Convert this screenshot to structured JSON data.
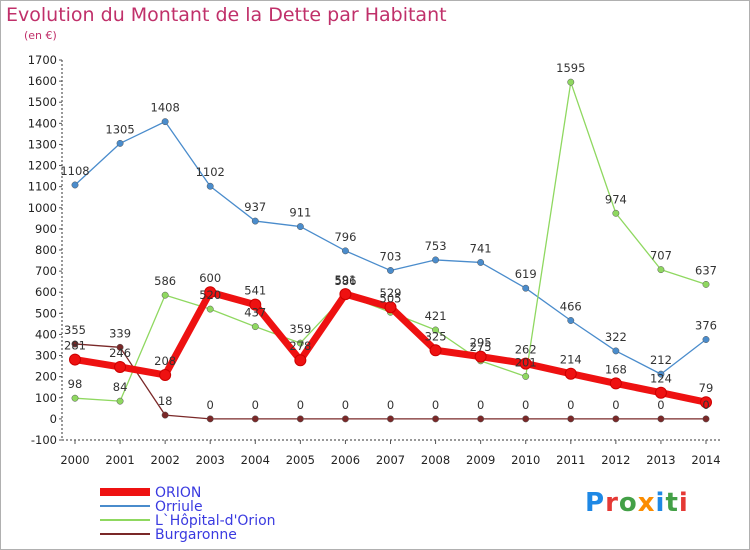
{
  "title": "Evolution du Montant de la Dette par Habitant",
  "subtitle": "(en €)",
  "logo": {
    "text": "Proxiti",
    "letter_colors": [
      "#1e88e5",
      "#e53935",
      "#43a047",
      "#fb8c00",
      "#1e88e5",
      "#43a047",
      "#e53935"
    ]
  },
  "chart_data": {
    "type": "line",
    "title": "Evolution du Montant de la Dette par Habitant",
    "subtitle": "(en €)",
    "xlabel": "",
    "ylabel": "",
    "x": [
      2000,
      2001,
      2002,
      2003,
      2004,
      2005,
      2006,
      2007,
      2008,
      2009,
      2010,
      2011,
      2012,
      2013,
      2014
    ],
    "ylim": [
      -100,
      1700
    ],
    "yticks": [
      -100,
      0,
      100,
      200,
      300,
      400,
      500,
      600,
      700,
      800,
      900,
      1000,
      1100,
      1200,
      1300,
      1400,
      1500,
      1600,
      1700
    ],
    "grid": false,
    "legend_position": "bottom-left",
    "series": [
      {
        "name": "Orriule",
        "color": "#4a8ccc",
        "width": 1.3,
        "values": [
          1108,
          1305,
          1408,
          1102,
          937,
          911,
          796,
          703,
          753,
          741,
          619,
          466,
          322,
          212,
          376
        ],
        "labels": [
          "1108",
          "1305",
          "1408",
          "1102",
          "937",
          "911",
          "796",
          "703",
          "753",
          "741",
          "619",
          "466",
          "322",
          "212",
          "376"
        ]
      },
      {
        "name": "L`Hôpital-d'Orion",
        "color": "#8fd860",
        "width": 1.3,
        "values": [
          98,
          84,
          586,
          520,
          437,
          359,
          586,
          505,
          421,
          275,
          201,
          1595,
          974,
          707,
          637
        ],
        "labels": [
          "98",
          "84",
          "586",
          "520",
          "437",
          "359",
          "586",
          "505",
          "421",
          "275",
          "201",
          "1595",
          "974",
          "707",
          "637"
        ]
      },
      {
        "name": "Burgaronne",
        "color": "#7a2828",
        "width": 1.3,
        "values": [
          355,
          339,
          18,
          0,
          0,
          0,
          0,
          0,
          0,
          0,
          0,
          0,
          0,
          0,
          0
        ],
        "labels": [
          "355",
          "339",
          "18",
          "0",
          "0",
          "0",
          "0",
          "0",
          "0",
          "0",
          "0",
          "0",
          "0",
          "0",
          "0"
        ]
      },
      {
        "name": "ORION",
        "color": "#ee1111",
        "width": 7,
        "values": [
          281,
          246,
          208,
          600,
          541,
          278,
          591,
          529,
          325,
          295,
          262,
          214,
          168,
          124,
          79
        ],
        "labels": [
          "281",
          "246",
          "208",
          "600",
          "541",
          "278",
          "591",
          "529",
          "325",
          "295",
          "262",
          "214",
          "168",
          "124",
          "79"
        ]
      }
    ],
    "legend": [
      {
        "name": "ORION",
        "color": "#ee1111"
      },
      {
        "name": "Orriule",
        "color": "#4a8ccc"
      },
      {
        "name": "L`Hôpital-d'Orion",
        "color": "#8fd860"
      },
      {
        "name": "Burgaronne",
        "color": "#7a2828"
      }
    ]
  }
}
